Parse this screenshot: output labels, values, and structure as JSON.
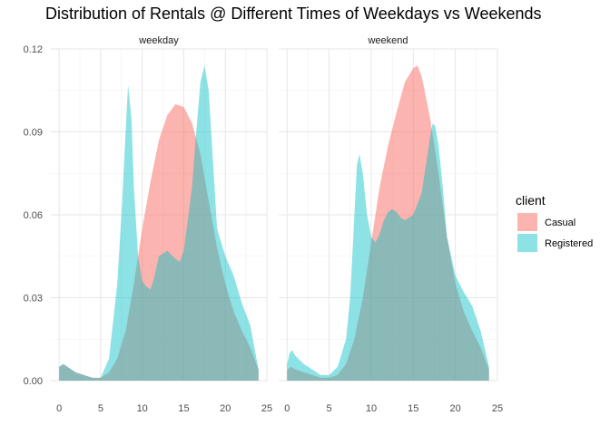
{
  "chart_data": {
    "type": "area",
    "title": "Distribution of Rentals @ Different Times of Weekdays vs Weekends",
    "xlabel": "",
    "ylabel": "",
    "xlim": [
      -1,
      25
    ],
    "ylim": [
      0,
      0.12
    ],
    "x_ticks": [
      "0",
      "5",
      "10",
      "15",
      "20",
      "25"
    ],
    "y_ticks": [
      "0.00",
      "0.03",
      "0.06",
      "0.09",
      "0.12"
    ],
    "grid": true,
    "legend": {
      "title": "client",
      "position": "right"
    },
    "colors": {
      "Casual": "#F8766D",
      "Registered": "#00BFC4"
    },
    "panels": [
      {
        "label": "weekday",
        "series": [
          {
            "name": "Casual",
            "x": [
              0,
              0.5,
              1,
              2,
              3,
              4,
              5,
              6,
              7,
              8,
              9,
              10,
              11,
              12,
              13,
              14,
              15,
              16,
              17,
              18,
              19,
              20,
              21,
              22,
              23,
              24
            ],
            "y": [
              0.005,
              0.006,
              0.005,
              0.003,
              0.002,
              0.001,
              0.001,
              0.003,
              0.008,
              0.018,
              0.035,
              0.055,
              0.072,
              0.087,
              0.096,
              0.1,
              0.099,
              0.093,
              0.082,
              0.065,
              0.048,
              0.035,
              0.025,
              0.018,
              0.012,
              0.004
            ]
          },
          {
            "name": "Registered",
            "x": [
              0,
              0.5,
              1,
              2,
              3,
              4,
              5,
              6,
              7,
              7.5,
              8,
              8.3,
              8.7,
              9,
              9.5,
              10,
              10.5,
              11,
              11.5,
              12,
              13,
              14,
              14.5,
              15,
              16,
              16.5,
              17,
              17.5,
              18,
              18.5,
              19,
              20,
              21,
              22,
              23,
              24
            ],
            "y": [
              0.005,
              0.006,
              0.005,
              0.003,
              0.002,
              0.001,
              0.001,
              0.008,
              0.035,
              0.06,
              0.09,
              0.107,
              0.095,
              0.07,
              0.045,
              0.036,
              0.034,
              0.033,
              0.038,
              0.045,
              0.047,
              0.044,
              0.043,
              0.047,
              0.07,
              0.09,
              0.108,
              0.114,
              0.105,
              0.08,
              0.055,
              0.045,
              0.038,
              0.028,
              0.02,
              0.004
            ]
          }
        ]
      },
      {
        "label": "weekend",
        "series": [
          {
            "name": "Casual",
            "x": [
              0,
              0.5,
              1,
              2,
              3,
              4,
              5,
              6,
              7,
              8,
              9,
              10,
              11,
              12,
              13,
              14,
              15,
              15.5,
              16,
              17,
              18,
              19,
              20,
              21,
              22,
              23,
              24
            ],
            "y": [
              0.004,
              0.005,
              0.004,
              0.003,
              0.002,
              0.001,
              0.001,
              0.002,
              0.006,
              0.015,
              0.03,
              0.05,
              0.07,
              0.085,
              0.097,
              0.108,
              0.113,
              0.114,
              0.11,
              0.095,
              0.075,
              0.052,
              0.035,
              0.025,
              0.018,
              0.012,
              0.004
            ]
          },
          {
            "name": "Registered",
            "x": [
              0,
              0.3,
              0.6,
              1,
              2,
              3,
              4,
              5,
              6,
              7,
              7.5,
              8,
              8.3,
              8.6,
              9,
              9.5,
              10,
              10.5,
              11,
              11.5,
              12,
              12.5,
              13,
              13.5,
              14,
              15,
              16,
              16.5,
              17,
              17.3,
              17.6,
              18,
              18.5,
              19,
              20,
              21,
              22,
              23,
              24
            ],
            "y": [
              0.006,
              0.01,
              0.011,
              0.009,
              0.006,
              0.004,
              0.002,
              0.002,
              0.005,
              0.015,
              0.03,
              0.06,
              0.078,
              0.082,
              0.075,
              0.06,
              0.052,
              0.05,
              0.053,
              0.058,
              0.061,
              0.062,
              0.061,
              0.059,
              0.058,
              0.06,
              0.068,
              0.078,
              0.088,
              0.093,
              0.092,
              0.085,
              0.07,
              0.052,
              0.038,
              0.032,
              0.027,
              0.018,
              0.005
            ]
          }
        ]
      }
    ]
  }
}
